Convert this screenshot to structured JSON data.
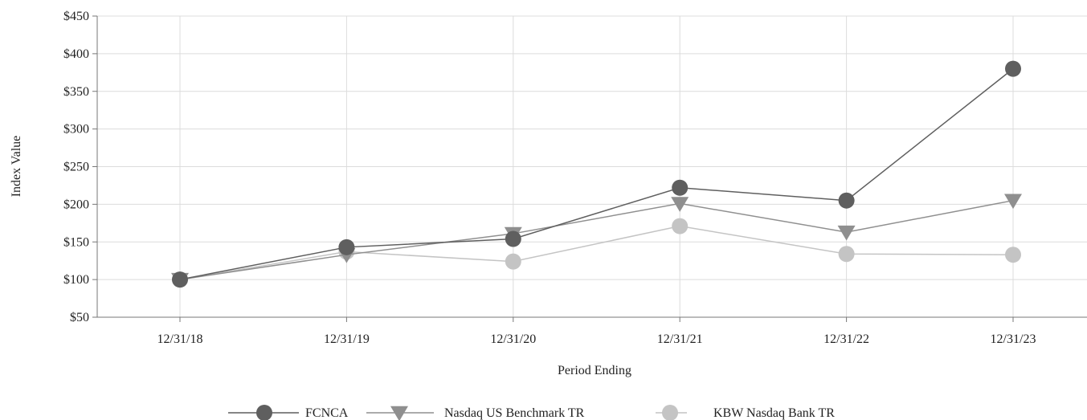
{
  "chart_data": {
    "type": "line",
    "title": "",
    "xlabel": "Period Ending",
    "ylabel": "Index Value",
    "categories": [
      "12/31/18",
      "12/31/19",
      "12/31/20",
      "12/31/21",
      "12/31/22",
      "12/31/23"
    ],
    "ylim": [
      50,
      450
    ],
    "yticks": [
      50,
      100,
      150,
      200,
      250,
      300,
      350,
      400,
      450
    ],
    "ytick_labels": [
      "$50",
      "$100",
      "$150",
      "$200",
      "$250",
      "$300",
      "$350",
      "$400",
      "$450"
    ],
    "grid": true,
    "legend_position": "bottom-center",
    "series": [
      {
        "name": "FCNCA",
        "marker": "circle",
        "color": "#5f5f5f",
        "marker_color": "#5f5f5f",
        "values": [
          100,
          143,
          154,
          222,
          205,
          380
        ]
      },
      {
        "name": "Nasdaq US Benchmark TR",
        "marker": "triangle-down",
        "color": "#8f8f8f",
        "marker_color": "#8f8f8f",
        "values": [
          100,
          133,
          161,
          201,
          163,
          205
        ]
      },
      {
        "name": "KBW Nasdaq Bank TR",
        "marker": "circle",
        "color": "#c4c4c4",
        "marker_color": "#c4c4c4",
        "values": [
          100,
          137,
          124,
          171,
          134,
          133
        ]
      }
    ]
  }
}
